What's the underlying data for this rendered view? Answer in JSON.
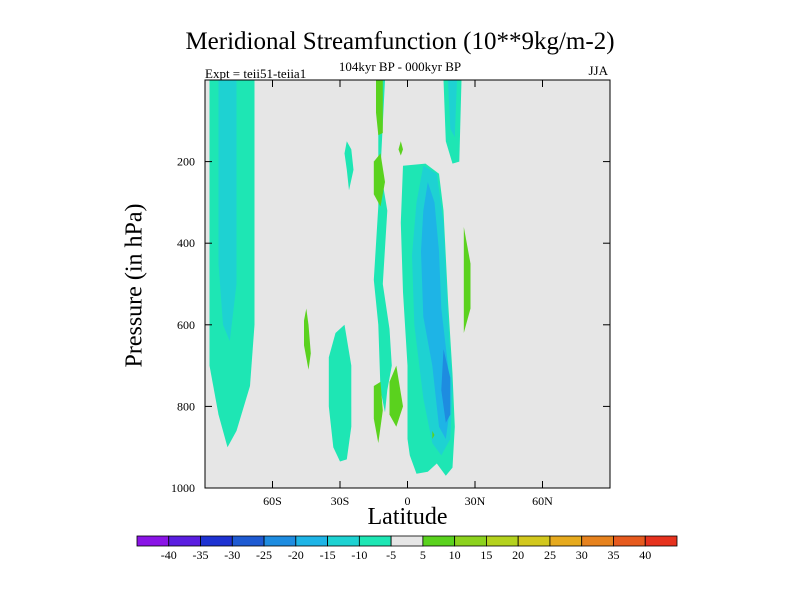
{
  "chart_data": {
    "type": "heatmap",
    "title": "Meridional Streamfunction (10**9kg/m-2)",
    "subtitle": "104kyr BP - 000kyr BP",
    "left_string": "Expt = teii51-teiia1",
    "right_string": "JJA",
    "xlabel": "Latitude",
    "ylabel": "Pressure (in hPa)",
    "xlim": [
      -90,
      90
    ],
    "ylim": [
      1000,
      0
    ],
    "y_reversed": true,
    "x_ticks": [
      -60,
      -30,
      0,
      30,
      60
    ],
    "x_tick_labels": [
      "60S",
      "30S",
      "0",
      "30N",
      "60N"
    ],
    "y_ticks": [
      200,
      400,
      600,
      800,
      1000
    ],
    "y_tick_labels": [
      "200",
      "400",
      "600",
      "800",
      "1000"
    ],
    "background_color": "#e6e6e6",
    "colorbar": {
      "labels": [
        "-40",
        "-35",
        "-30",
        "-25",
        "-20",
        "-15",
        "-10",
        "-5",
        "5",
        "10",
        "15",
        "20",
        "25",
        "30",
        "35",
        "40"
      ],
      "colors": [
        "#8a14e6",
        "#5a1ee0",
        "#1e32d2",
        "#1e5ad2",
        "#1e8ce0",
        "#1eb4e6",
        "#1ed2d2",
        "#1ee6b4",
        "#e6e6e6",
        "#5ad21e",
        "#8cd21e",
        "#b4d21e",
        "#d2c81e",
        "#e6aa1e",
        "#e6821e",
        "#e65a1e",
        "#e6321e"
      ]
    },
    "regions": [
      {
        "category": "-10 to -5",
        "color": "#1ee6b4",
        "points": [
          [
            -88,
            0
          ],
          [
            -68,
            0
          ],
          [
            -68,
            600
          ],
          [
            -70,
            750
          ],
          [
            -76,
            860
          ],
          [
            -80,
            900
          ],
          [
            -84,
            820
          ],
          [
            -88,
            700
          ]
        ]
      },
      {
        "category": "-15 to -10",
        "color": "#1ed2d2",
        "points": [
          [
            -84,
            0
          ],
          [
            -76,
            0
          ],
          [
            -76,
            500
          ],
          [
            -79,
            640
          ],
          [
            -82,
            600
          ],
          [
            -84,
            450
          ]
        ]
      },
      {
        "category": "-10 to -5",
        "color": "#1ee6b4",
        "points": [
          [
            -32,
            620
          ],
          [
            -28,
            600
          ],
          [
            -25,
            700
          ],
          [
            -25,
            850
          ],
          [
            -27,
            930
          ],
          [
            -30,
            935
          ],
          [
            -33,
            900
          ],
          [
            -35,
            800
          ],
          [
            -35,
            680
          ]
        ]
      },
      {
        "category": "-10 to -5",
        "color": "#1ee6b4",
        "points": [
          [
            -27,
            150
          ],
          [
            -25,
            170
          ],
          [
            -24,
            220
          ],
          [
            -26,
            270
          ],
          [
            -27,
            220
          ],
          [
            -28,
            180
          ]
        ]
      },
      {
        "category": "-10 to -5",
        "color": "#1ee6b4",
        "points": [
          [
            -13,
            0
          ],
          [
            -10,
            0
          ],
          [
            -12,
            220
          ],
          [
            -9,
            320
          ],
          [
            -11,
            500
          ],
          [
            -8,
            610
          ],
          [
            -7,
            700
          ],
          [
            -9,
            760
          ],
          [
            -10,
            815
          ],
          [
            -12,
            760
          ],
          [
            -13,
            600
          ],
          [
            -15,
            490
          ],
          [
            -13,
            310
          ]
        ]
      },
      {
        "category": "-10 to -5",
        "color": "#1ee6b4",
        "points": [
          [
            -2,
            210
          ],
          [
            8,
            205
          ],
          [
            14,
            230
          ],
          [
            16,
            320
          ],
          [
            18,
            540
          ],
          [
            20,
            720
          ],
          [
            21,
            850
          ],
          [
            20,
            950
          ],
          [
            17,
            970
          ],
          [
            13,
            940
          ],
          [
            9,
            960
          ],
          [
            4,
            965
          ],
          [
            1,
            920
          ],
          [
            0,
            880
          ],
          [
            0,
            700
          ],
          [
            -2,
            520
          ],
          [
            -3,
            350
          ]
        ]
      },
      {
        "category": "-10 to -5",
        "color": "#1ee6b4",
        "points": [
          [
            16,
            0
          ],
          [
            24,
            0
          ],
          [
            23,
            200
          ],
          [
            20,
            205
          ],
          [
            17,
            150
          ]
        ]
      },
      {
        "category": "-15 to -10",
        "color": "#1ed2d2",
        "points": [
          [
            7,
            210
          ],
          [
            13,
            230
          ],
          [
            16,
            350
          ],
          [
            18,
            580
          ],
          [
            20,
            760
          ],
          [
            19,
            880
          ],
          [
            15,
            920
          ],
          [
            11,
            890
          ],
          [
            7,
            780
          ],
          [
            3,
            600
          ],
          [
            2,
            430
          ],
          [
            4,
            300
          ]
        ]
      },
      {
        "category": "-15 to -10",
        "color": "#1ed2d2",
        "points": [
          [
            18,
            0
          ],
          [
            22,
            0
          ],
          [
            21,
            140
          ],
          [
            19,
            120
          ]
        ]
      },
      {
        "category": "-20 to -15",
        "color": "#1eb4e6",
        "points": [
          [
            9,
            250
          ],
          [
            12,
            300
          ],
          [
            14,
            420
          ],
          [
            15,
            560
          ],
          [
            18,
            700
          ],
          [
            19,
            800
          ],
          [
            17,
            880
          ],
          [
            14,
            850
          ],
          [
            11,
            700
          ],
          [
            7,
            580
          ],
          [
            6,
            420
          ],
          [
            7,
            320
          ]
        ]
      },
      {
        "category": "-25 to -20",
        "color": "#1e8ce0",
        "points": [
          [
            16,
            660
          ],
          [
            19,
            730
          ],
          [
            19,
            820
          ],
          [
            17,
            840
          ],
          [
            15,
            760
          ]
        ]
      },
      {
        "category": "5 to 10",
        "color": "#5ad21e",
        "points": [
          [
            -45,
            560
          ],
          [
            -44,
            600
          ],
          [
            -43,
            670
          ],
          [
            -44,
            710
          ],
          [
            -46,
            650
          ],
          [
            -46,
            590
          ]
        ]
      },
      {
        "category": "5 to 10",
        "color": "#5ad21e",
        "points": [
          [
            -14,
            0
          ],
          [
            -11,
            0
          ],
          [
            -11,
            130
          ],
          [
            -13,
            135
          ],
          [
            -14,
            80
          ]
        ]
      },
      {
        "category": "5 to 10",
        "color": "#5ad21e",
        "points": [
          [
            -15,
            200
          ],
          [
            -12,
            180
          ],
          [
            -10,
            250
          ],
          [
            -12,
            310
          ],
          [
            -15,
            280
          ]
        ]
      },
      {
        "category": "5 to 10",
        "color": "#5ad21e",
        "points": [
          [
            -15,
            750
          ],
          [
            -12,
            740
          ],
          [
            -11,
            810
          ],
          [
            -13,
            890
          ],
          [
            -15,
            830
          ]
        ]
      },
      {
        "category": "5 to 10",
        "color": "#5ad21e",
        "points": [
          [
            -8,
            740
          ],
          [
            -5,
            700
          ],
          [
            -2,
            800
          ],
          [
            -5,
            850
          ],
          [
            -8,
            820
          ]
        ]
      },
      {
        "category": "5 to 10",
        "color": "#5ad21e",
        "points": [
          [
            -3,
            150
          ],
          [
            -2,
            170
          ],
          [
            -3,
            185
          ],
          [
            -4,
            170
          ]
        ]
      },
      {
        "category": "5 to 10",
        "color": "#5ad21e",
        "points": [
          [
            25,
            360
          ],
          [
            28,
            450
          ],
          [
            28,
            560
          ],
          [
            25,
            620
          ],
          [
            25,
            480
          ]
        ]
      },
      {
        "category": "5 to 10",
        "color": "#5ad21e",
        "points": [
          [
            11,
            860
          ],
          [
            12,
            870
          ],
          [
            11,
            880
          ]
        ]
      }
    ]
  }
}
